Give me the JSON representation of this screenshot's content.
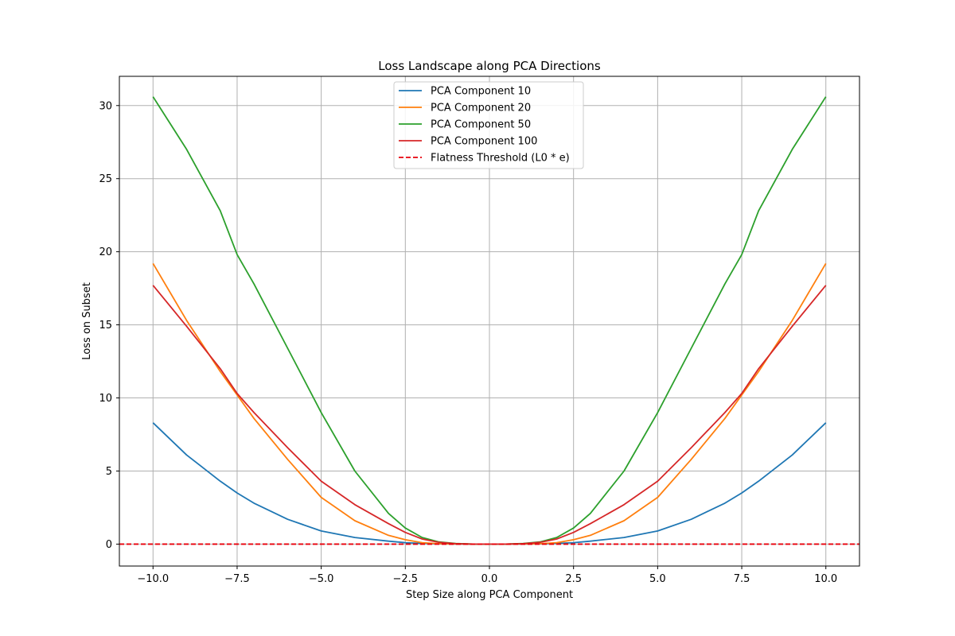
{
  "chart_data": {
    "type": "line",
    "title": "Loss Landscape along PCA Directions",
    "xlabel": "Step Size along PCA Component",
    "ylabel": "Loss on Subset",
    "xlim": [
      -11,
      11
    ],
    "ylim": [
      -1.5,
      32
    ],
    "x_ticks": [
      -10,
      -7.5,
      -5,
      -2.5,
      0,
      2.5,
      5,
      7.5,
      10
    ],
    "x_tick_labels": [
      "−10.0",
      "−7.5",
      "−5.0",
      "−2.5",
      "0.0",
      "2.5",
      "5.0",
      "7.5",
      "10.0"
    ],
    "y_ticks": [
      0,
      5,
      10,
      15,
      20,
      25,
      30
    ],
    "y_tick_labels": [
      "0",
      "5",
      "10",
      "15",
      "20",
      "25",
      "30"
    ],
    "grid": true,
    "legend_position": "top-center",
    "x": [
      -10,
      -9,
      -8,
      -7.5,
      -7,
      -6,
      -5,
      -4,
      -3,
      -2.5,
      -2,
      -1.5,
      -1,
      -0.5,
      0,
      0.5,
      1,
      1.5,
      2,
      2.5,
      3,
      4,
      5,
      6,
      7,
      7.5,
      8,
      9,
      10
    ],
    "series": [
      {
        "name": "PCA Component 10",
        "color": "#1f77b4",
        "style": "solid",
        "values": [
          8.3,
          6.1,
          4.3,
          3.5,
          2.8,
          1.7,
          0.9,
          0.45,
          0.2,
          0.1,
          0.05,
          0.02,
          0.005,
          0.0,
          0.0,
          0.0,
          0.005,
          0.02,
          0.05,
          0.1,
          0.2,
          0.45,
          0.9,
          1.7,
          2.8,
          3.5,
          4.3,
          6.1,
          8.3
        ]
      },
      {
        "name": "PCA Component 20",
        "color": "#ff7f0e",
        "style": "solid",
        "values": [
          19.2,
          15.3,
          11.8,
          10.2,
          8.6,
          5.8,
          3.2,
          1.6,
          0.6,
          0.3,
          0.1,
          0.03,
          0.01,
          0.0,
          0.0,
          0.0,
          0.01,
          0.03,
          0.1,
          0.3,
          0.6,
          1.6,
          3.2,
          5.8,
          8.6,
          10.2,
          11.8,
          15.3,
          19.2
        ]
      },
      {
        "name": "PCA Component 50",
        "color": "#2ca02c",
        "style": "solid",
        "values": [
          30.6,
          27.0,
          22.8,
          19.8,
          17.8,
          13.4,
          9.0,
          5.0,
          2.1,
          1.1,
          0.45,
          0.15,
          0.04,
          0.0,
          0.0,
          0.0,
          0.04,
          0.15,
          0.45,
          1.1,
          2.1,
          5.0,
          9.0,
          13.4,
          17.8,
          19.8,
          22.8,
          27.0,
          30.6
        ]
      },
      {
        "name": "PCA Component 100",
        "color": "#d62728",
        "style": "solid",
        "values": [
          17.7,
          14.9,
          12.0,
          10.3,
          9.0,
          6.6,
          4.3,
          2.7,
          1.4,
          0.8,
          0.35,
          0.12,
          0.03,
          0.0,
          0.0,
          0.0,
          0.03,
          0.12,
          0.35,
          0.8,
          1.4,
          2.7,
          4.3,
          6.6,
          9.0,
          10.3,
          12.0,
          14.9,
          17.7
        ]
      },
      {
        "name": "Flatness Threshold (L0 * e)",
        "color": "#e8000b",
        "style": "dashed",
        "constant": 0.0
      }
    ]
  }
}
